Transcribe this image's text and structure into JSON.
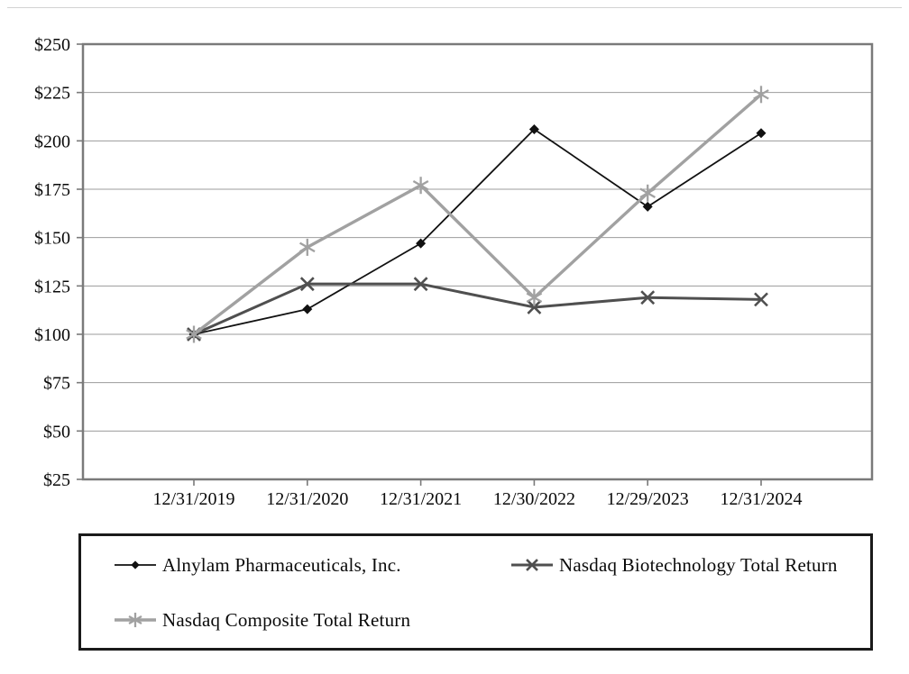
{
  "page": {
    "background": "#ffffff",
    "top_rule_color": "#d2d2d2"
  },
  "chart_data": {
    "type": "line",
    "title": "",
    "xlabel": "",
    "ylabel": "",
    "x_categories": [
      "12/31/2019",
      "12/31/2020",
      "12/31/2021",
      "12/30/2022",
      "12/29/2023",
      "12/31/2024"
    ],
    "y_axis": {
      "tick_values": [
        25,
        50,
        75,
        100,
        125,
        150,
        175,
        200,
        225,
        250
      ],
      "tick_labels": [
        "$25",
        "$50",
        "$75",
        "$100",
        "$125",
        "$150",
        "$175",
        "$200",
        "$225",
        "$250"
      ],
      "range": [
        25,
        250
      ]
    },
    "grid": true,
    "gridline_color": "#9b9b9b",
    "axis_color": "#7a7a7a",
    "legend_position": "bottom-box",
    "series": [
      {
        "name": "Alnylam Pharmaceuticals, Inc.",
        "marker": "diamond",
        "color": "#111111",
        "line_width": 1.8,
        "values": [
          100,
          113,
          147,
          206,
          166,
          204
        ]
      },
      {
        "name": "Nasdaq Biotechnology Total Return",
        "marker": "x",
        "color": "#4f4f4f",
        "line_width": 3,
        "values": [
          100,
          126,
          126,
          114,
          119,
          118
        ]
      },
      {
        "name": "Nasdaq Composite Total Return",
        "marker": "star",
        "color": "#a1a1a1",
        "line_width": 3.4,
        "values": [
          100,
          145,
          177,
          119,
          173,
          224
        ]
      }
    ]
  }
}
